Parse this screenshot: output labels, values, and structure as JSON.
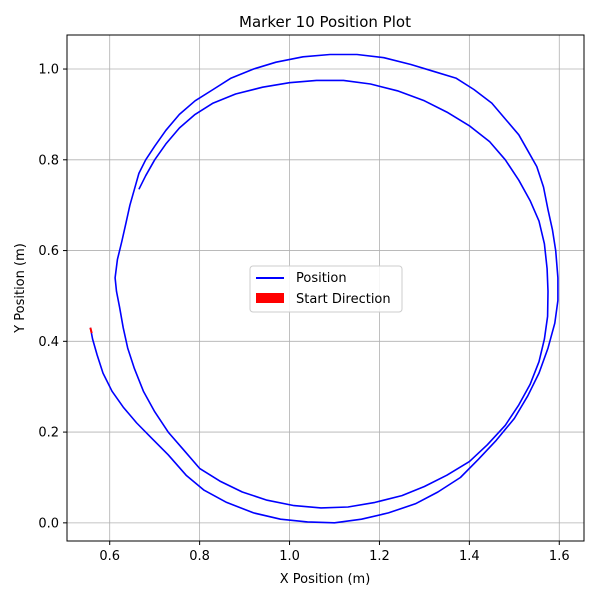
{
  "chart_data": {
    "type": "line",
    "title": "Marker 10 Position Plot",
    "xlabel": "X Position (m)",
    "ylabel": "Y Position (m)",
    "xlim": [
      0.505,
      1.655
    ],
    "ylim": [
      -0.04,
      1.075
    ],
    "xticks": [
      0.6,
      0.8,
      1.0,
      1.2,
      1.4,
      1.6
    ],
    "xtick_labels": [
      "0.6",
      "0.8",
      "1.0",
      "1.2",
      "1.4",
      "1.6"
    ],
    "yticks": [
      0.0,
      0.2,
      0.4,
      0.6,
      0.8,
      1.0
    ],
    "ytick_labels": [
      "0.0",
      "0.2",
      "0.4",
      "0.6",
      "0.8",
      "1.0"
    ],
    "grid": true,
    "legend_placement": "center",
    "colors": {
      "position": "#0000ff",
      "start_direction": "#ff0000"
    },
    "legend": [
      {
        "label": "Position",
        "kind": "line",
        "color": "#0000ff"
      },
      {
        "label": "Start Direction",
        "kind": "patch",
        "color": "#ff0000"
      }
    ],
    "series": [
      {
        "name": "Position",
        "x": [
          0.557,
          0.562,
          0.572,
          0.585,
          0.605,
          0.63,
          0.66,
          0.695,
          0.73,
          0.77,
          0.81,
          0.86,
          0.92,
          0.98,
          1.04,
          1.1,
          1.16,
          1.22,
          1.28,
          1.33,
          1.38,
          1.42,
          1.46,
          1.5,
          1.53,
          1.555,
          1.575,
          1.59,
          1.597,
          1.597,
          1.592,
          1.585,
          1.575,
          1.565,
          1.55,
          1.53,
          1.51,
          1.48,
          1.45,
          1.41,
          1.37,
          1.32,
          1.27,
          1.21,
          1.15,
          1.09,
          1.03,
          0.97,
          0.92,
          0.87,
          0.83,
          0.79,
          0.755,
          0.725,
          0.7,
          0.68,
          0.665,
          0.655,
          0.645,
          0.636,
          0.627,
          0.617,
          0.612,
          0.615,
          0.622,
          0.63,
          0.64,
          0.655,
          0.675,
          0.7,
          0.73,
          0.765,
          0.8,
          0.845,
          0.895,
          0.95,
          1.01,
          1.07,
          1.13,
          1.19,
          1.25,
          1.3,
          1.35,
          1.4,
          1.44,
          1.48,
          1.51,
          1.535,
          1.555,
          1.567,
          1.574,
          1.575,
          1.573,
          1.567,
          1.555,
          1.535,
          1.51,
          1.48,
          1.445,
          1.4,
          1.35,
          1.3,
          1.24,
          1.18,
          1.12,
          1.06,
          1.0,
          0.94,
          0.88,
          0.83,
          0.79,
          0.755,
          0.725,
          0.7,
          0.68,
          0.665
        ],
        "y": [
          0.43,
          0.405,
          0.37,
          0.33,
          0.29,
          0.255,
          0.22,
          0.185,
          0.15,
          0.105,
          0.072,
          0.045,
          0.022,
          0.008,
          0.002,
          0.0,
          0.008,
          0.022,
          0.042,
          0.068,
          0.1,
          0.14,
          0.182,
          0.23,
          0.28,
          0.33,
          0.385,
          0.44,
          0.49,
          0.54,
          0.6,
          0.645,
          0.69,
          0.74,
          0.785,
          0.82,
          0.855,
          0.89,
          0.925,
          0.955,
          0.98,
          0.995,
          1.01,
          1.025,
          1.032,
          1.032,
          1.027,
          1.015,
          1.0,
          0.98,
          0.955,
          0.93,
          0.9,
          0.865,
          0.83,
          0.8,
          0.77,
          0.735,
          0.7,
          0.66,
          0.62,
          0.58,
          0.54,
          0.51,
          0.475,
          0.43,
          0.385,
          0.34,
          0.29,
          0.245,
          0.2,
          0.16,
          0.12,
          0.092,
          0.068,
          0.05,
          0.038,
          0.033,
          0.035,
          0.045,
          0.06,
          0.08,
          0.105,
          0.135,
          0.172,
          0.215,
          0.26,
          0.305,
          0.355,
          0.405,
          0.455,
          0.51,
          0.56,
          0.615,
          0.665,
          0.71,
          0.755,
          0.8,
          0.84,
          0.875,
          0.905,
          0.93,
          0.952,
          0.967,
          0.975,
          0.975,
          0.97,
          0.96,
          0.945,
          0.925,
          0.9,
          0.87,
          0.835,
          0.8,
          0.765,
          0.735
        ]
      }
    ],
    "start_direction": {
      "x": 0.557,
      "y": 0.43,
      "dx": 0.003,
      "dy": -0.012
    }
  }
}
